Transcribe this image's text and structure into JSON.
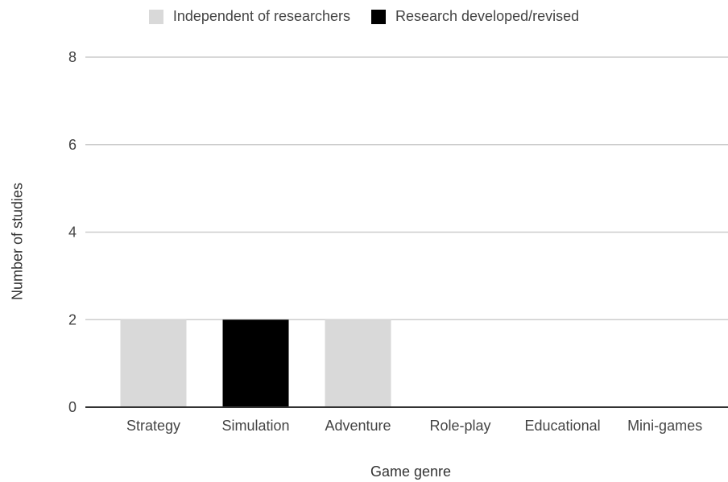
{
  "chart_data": {
    "type": "bar",
    "categories": [
      "Strategy",
      "Simulation",
      "Adventure",
      "Role-play",
      "Educational",
      "Mini-games"
    ],
    "series": [
      {
        "name": "Independent of researchers",
        "color": "#d9d9d9",
        "values": [
          2,
          0,
          2,
          0,
          0,
          0
        ]
      },
      {
        "name": "Research developed/revised",
        "color": "#000000",
        "values": [
          0,
          2,
          0,
          0,
          0,
          0
        ]
      }
    ],
    "xlabel": "Game genre",
    "ylabel": "Number of studies",
    "ylim": [
      0,
      8
    ],
    "yticks": [
      0,
      2,
      4,
      6,
      8
    ],
    "grid": true,
    "legend_position": "top"
  }
}
